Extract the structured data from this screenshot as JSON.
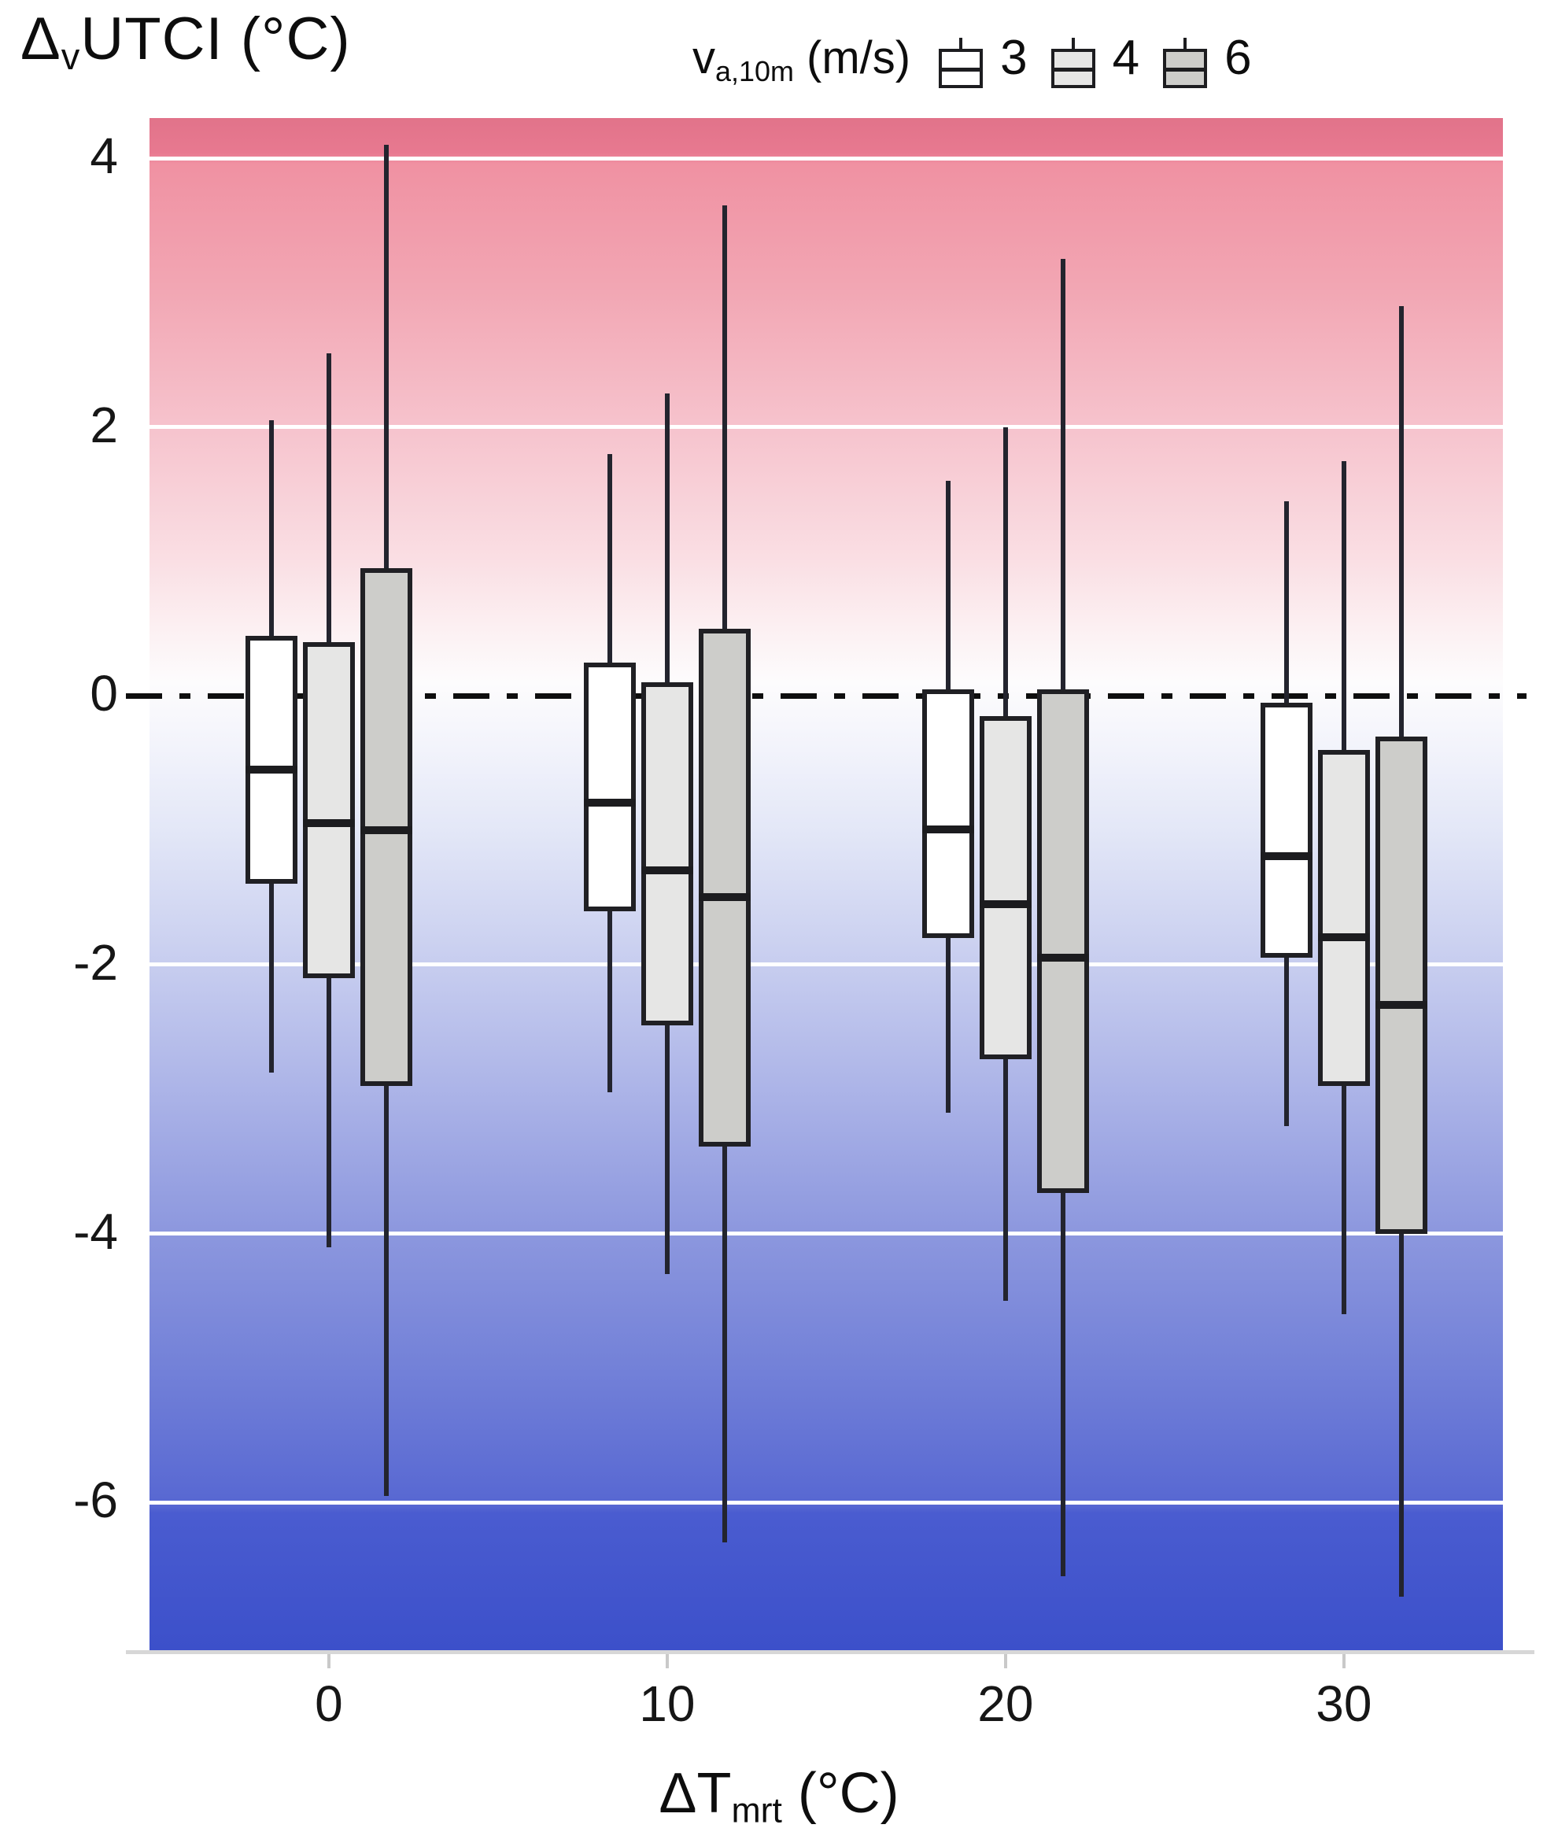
{
  "title": {
    "delta": "Δ",
    "sub": "v",
    "rest": "UTCI (°C)"
  },
  "legend": {
    "var": "v",
    "var_sub": "a,10m",
    "unit": " (m/s)",
    "items": [
      {
        "label": "3",
        "fill": "#ffffff"
      },
      {
        "label": "4",
        "fill": "#e6e6e5"
      },
      {
        "label": "6",
        "fill": "#cdcdca"
      }
    ]
  },
  "x_axis": {
    "label_main": "ΔT",
    "label_sub": "mrt",
    "label_unit": " (°C)",
    "tick_labels": [
      "0",
      "10",
      "20",
      "30"
    ]
  },
  "y_axis": {
    "tick_labels": [
      "4",
      "2",
      "0",
      "-2",
      "-4",
      "-6"
    ]
  },
  "chart_data": {
    "type": "boxplot",
    "x_title": "ΔTmrt (°C)",
    "y_title": "ΔvUTCI (°C)",
    "legend_title": "va,10m (m/s)",
    "categories": [
      0,
      10,
      20,
      30
    ],
    "xlim": [
      -5.3,
      34.7
    ],
    "ylim": [
      -7.1,
      4.3
    ],
    "yticks": [
      4,
      2,
      0,
      -2,
      -4,
      -6
    ],
    "gridline_values": [
      4,
      2,
      -2,
      -4,
      -6
    ],
    "zero_line_value": 0,
    "grid_color": "#ffffff",
    "series": [
      {
        "name": "3",
        "fill": "#ffffff",
        "boxes_low_q1_med_q3_high": [
          [
            -2.8,
            -1.4,
            -0.55,
            0.45,
            2.05
          ],
          [
            -2.95,
            -1.6,
            -0.8,
            0.25,
            1.8
          ],
          [
            -3.1,
            -1.8,
            -1.0,
            0.05,
            1.6
          ],
          [
            -3.2,
            -1.95,
            -1.2,
            -0.05,
            1.45
          ]
        ]
      },
      {
        "name": "4",
        "fill": "#e6e6e5",
        "boxes_low_q1_med_q3_high": [
          [
            -4.1,
            -2.1,
            -0.95,
            0.4,
            2.55
          ],
          [
            -4.3,
            -2.45,
            -1.3,
            0.1,
            2.25
          ],
          [
            -4.5,
            -2.7,
            -1.55,
            -0.15,
            2.0
          ],
          [
            -4.6,
            -2.9,
            -1.8,
            -0.4,
            1.75
          ]
        ]
      },
      {
        "name": "6",
        "fill": "#cdcdca",
        "boxes_low_q1_med_q3_high": [
          [
            -5.95,
            -2.9,
            -1.0,
            0.95,
            4.1
          ],
          [
            -6.3,
            -3.35,
            -1.5,
            0.5,
            3.65
          ],
          [
            -6.55,
            -3.7,
            -1.95,
            0.05,
            3.25
          ],
          [
            -6.7,
            -4.0,
            -2.3,
            -0.3,
            2.9
          ]
        ]
      }
    ],
    "background_gradient_stops": [
      [
        4.3,
        "#e1738a"
      ],
      [
        4.04,
        "#e87990"
      ],
      [
        3.96,
        "#f091a2"
      ],
      [
        3.0,
        "#f2a7b4"
      ],
      [
        2.0,
        "#f6c3cd"
      ],
      [
        1.0,
        "#fadfe4"
      ],
      [
        0.5,
        "#fcf0f2"
      ],
      [
        0.1,
        "#fdfcfd"
      ],
      [
        -0.4,
        "#f2f3fb"
      ],
      [
        -1.0,
        "#e3e7f7"
      ],
      [
        -2.0,
        "#c7cdef"
      ],
      [
        -3.0,
        "#aab2e7"
      ],
      [
        -4.0,
        "#8c97de"
      ],
      [
        -5.0,
        "#7381d8"
      ],
      [
        -6.03,
        "#5767d2"
      ],
      [
        -6.08,
        "#4a5cd0"
      ],
      [
        -7.1,
        "#3c50ca"
      ]
    ]
  }
}
